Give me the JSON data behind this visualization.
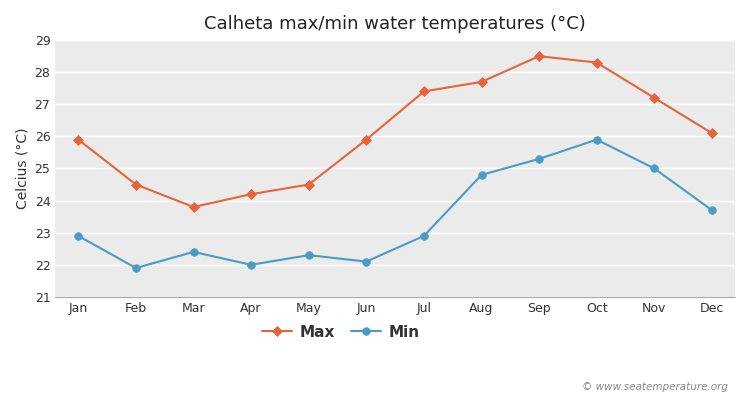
{
  "title": "Calheta max/min water temperatures (°C)",
  "ylabel": "Celcius (°C)",
  "months": [
    "Jan",
    "Feb",
    "Mar",
    "Apr",
    "May",
    "Jun",
    "Jul",
    "Aug",
    "Sep",
    "Oct",
    "Nov",
    "Dec"
  ],
  "max_temps": [
    25.9,
    24.5,
    23.8,
    24.2,
    24.5,
    25.9,
    27.4,
    27.7,
    28.5,
    28.3,
    27.2,
    26.1
  ],
  "min_temps": [
    22.9,
    21.9,
    22.4,
    22.0,
    22.3,
    22.1,
    22.9,
    24.8,
    25.3,
    25.9,
    25.0,
    23.7
  ],
  "max_color": "#E8633A",
  "min_color": "#4A9CC2",
  "ylim": [
    21,
    29
  ],
  "yticks": [
    21,
    22,
    23,
    24,
    25,
    26,
    27,
    28,
    29
  ],
  "fig_background": "#FFFFFF",
  "plot_background": "#EBEBEB",
  "grid_color": "#FFFFFF",
  "watermark": "© www.seatemperature.org",
  "title_fontsize": 13,
  "label_fontsize": 10,
  "tick_fontsize": 9,
  "watermark_fontsize": 7.5,
  "legend_labels": [
    "Max",
    "Min"
  ]
}
